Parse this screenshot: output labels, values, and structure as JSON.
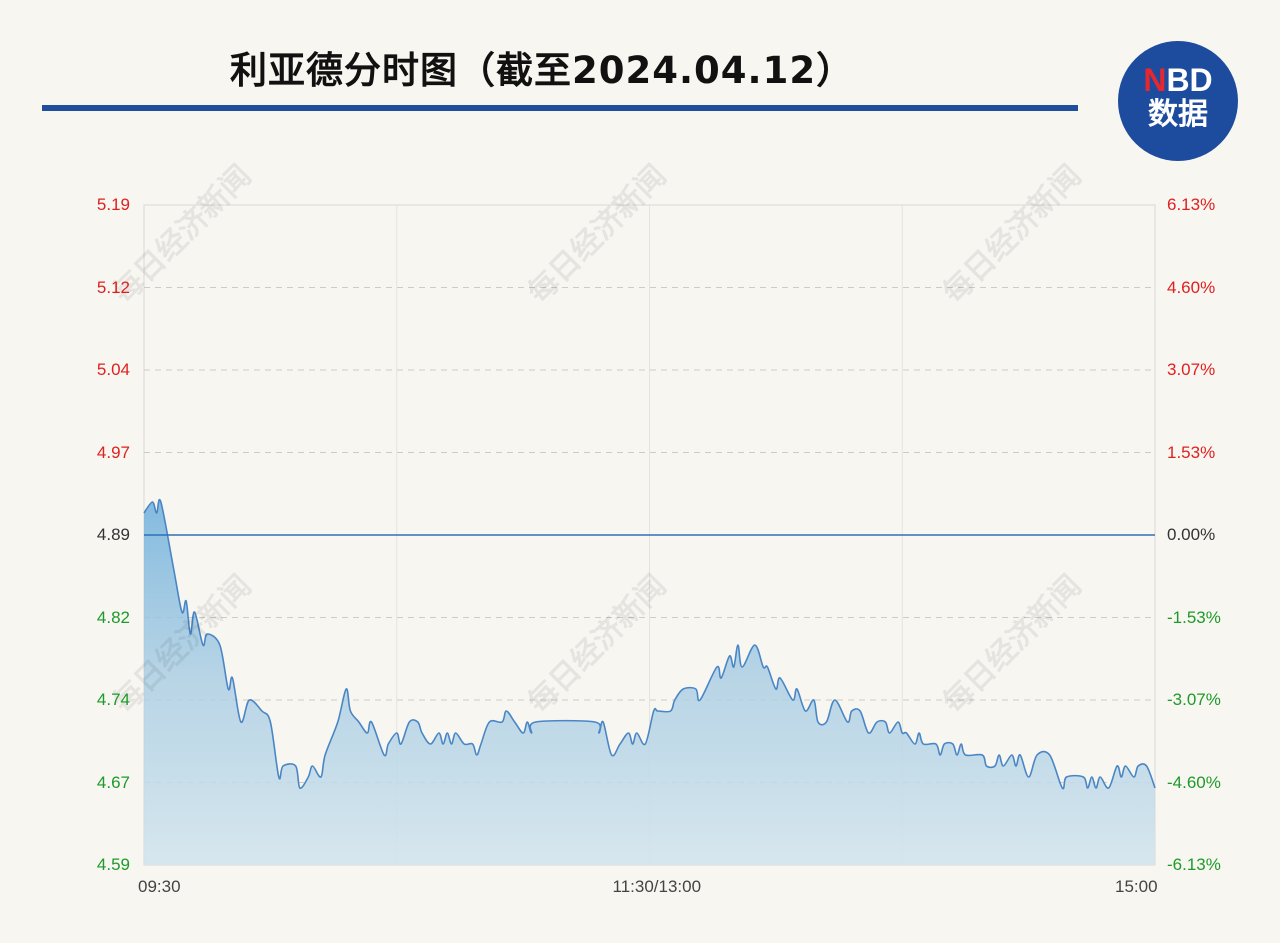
{
  "title": "利亚德分时图（截至2024.04.12）",
  "logo": {
    "brand_n": "N",
    "brand_rest": "BD",
    "subtitle": "数据"
  },
  "watermark": "每日经济新闻",
  "colors": {
    "up": "#e02020",
    "flat": "#333333",
    "down": "#1e9a2a",
    "line": "#4a86c5",
    "baseline": "#2f6fb8",
    "title_rule": "#1f4e9c",
    "logo_bg": "#1d4c9e"
  },
  "chart_data": {
    "type": "area",
    "title": "利亚德分时图（截至2024.04.12）",
    "prev_close": 4.89,
    "ylim": [
      4.59,
      5.19
    ],
    "y_ticks_left": [
      "5.19",
      "5.12",
      "5.04",
      "4.97",
      "4.89",
      "4.82",
      "4.74",
      "4.67",
      "4.59"
    ],
    "y_ticks_right": [
      "6.13%",
      "4.60%",
      "3.07%",
      "1.53%",
      "0.00%",
      "-1.53%",
      "-3.07%",
      "-4.60%",
      "-6.13%"
    ],
    "x_ticks": [
      "09:30",
      "11:30/13:00",
      "15:00"
    ],
    "sessions": [
      [
        "09:30",
        "11:30"
      ],
      [
        "13:00",
        "15:00"
      ]
    ],
    "grid": true,
    "series": [
      {
        "points": [
          [
            "09:30",
            4.91
          ],
          [
            "09:32",
            4.92
          ],
          [
            "09:33",
            4.91
          ],
          [
            "09:34",
            4.92
          ],
          [
            "09:37",
            4.86
          ],
          [
            "09:39",
            4.82
          ],
          [
            "09:40",
            4.83
          ],
          [
            "09:41",
            4.8
          ],
          [
            "09:42",
            4.82
          ],
          [
            "09:44",
            4.79
          ],
          [
            "09:45",
            4.8
          ],
          [
            "09:48",
            4.79
          ],
          [
            "09:50",
            4.75
          ],
          [
            "09:51",
            4.76
          ],
          [
            "09:53",
            4.72
          ],
          [
            "09:55",
            4.74
          ],
          [
            "09:58",
            4.73
          ],
          [
            "10:00",
            4.72
          ],
          [
            "10:02",
            4.67
          ],
          [
            "10:03",
            4.68
          ],
          [
            "10:06",
            4.68
          ],
          [
            "10:07",
            4.66
          ],
          [
            "10:09",
            4.67
          ],
          [
            "10:10",
            4.68
          ],
          [
            "10:12",
            4.67
          ],
          [
            "10:13",
            4.69
          ],
          [
            "10:16",
            4.72
          ],
          [
            "10:18",
            4.75
          ],
          [
            "10:19",
            4.73
          ],
          [
            "10:21",
            4.72
          ],
          [
            "10:23",
            4.71
          ],
          [
            "10:24",
            4.72
          ],
          [
            "10:27",
            4.69
          ],
          [
            "10:28",
            4.7
          ],
          [
            "10:30",
            4.71
          ],
          [
            "10:31",
            4.7
          ],
          [
            "10:33",
            4.72
          ],
          [
            "10:35",
            4.72
          ],
          [
            "10:36",
            4.71
          ],
          [
            "10:38",
            4.7
          ],
          [
            "10:40",
            4.71
          ],
          [
            "10:41",
            4.7
          ],
          [
            "10:42",
            4.71
          ],
          [
            "10:43",
            4.7
          ],
          [
            "10:44",
            4.71
          ],
          [
            "10:46",
            4.7
          ],
          [
            "10:48",
            4.7
          ],
          [
            "10:49",
            4.69
          ],
          [
            "10:50",
            4.7
          ],
          [
            "10:52",
            4.72
          ],
          [
            "10:55",
            4.72
          ],
          [
            "10:56",
            4.73
          ],
          [
            "10:58",
            4.72
          ],
          [
            "11:00",
            4.71
          ],
          [
            "11:01",
            4.72
          ],
          [
            "11:02",
            4.71
          ],
          [
            "11:03",
            4.72
          ],
          [
            "11:17",
            4.72
          ],
          [
            "11:18",
            4.71
          ],
          [
            "11:19",
            4.72
          ],
          [
            "11:21",
            4.69
          ],
          [
            "11:23",
            4.7
          ],
          [
            "11:25",
            4.71
          ],
          [
            "11:26",
            4.7
          ],
          [
            "11:27",
            4.71
          ],
          [
            "11:29",
            4.7
          ],
          [
            "13:01",
            4.73
          ],
          [
            "13:02",
            4.73
          ],
          [
            "13:05",
            4.73
          ],
          [
            "13:06",
            4.74
          ],
          [
            "13:08",
            4.75
          ],
          [
            "13:11",
            4.75
          ],
          [
            "13:12",
            4.74
          ],
          [
            "13:16",
            4.77
          ],
          [
            "13:17",
            4.76
          ],
          [
            "13:19",
            4.78
          ],
          [
            "13:20",
            4.77
          ],
          [
            "13:21",
            4.79
          ],
          [
            "13:22",
            4.77
          ],
          [
            "13:25",
            4.79
          ],
          [
            "13:27",
            4.77
          ],
          [
            "13:28",
            4.77
          ],
          [
            "13:30",
            4.75
          ],
          [
            "13:31",
            4.76
          ],
          [
            "13:34",
            4.74
          ],
          [
            "13:35",
            4.75
          ],
          [
            "13:37",
            4.73
          ],
          [
            "13:39",
            4.74
          ],
          [
            "13:40",
            4.72
          ],
          [
            "13:42",
            4.72
          ],
          [
            "13:44",
            4.74
          ],
          [
            "13:47",
            4.72
          ],
          [
            "13:48",
            4.73
          ],
          [
            "13:50",
            4.73
          ],
          [
            "13:52",
            4.71
          ],
          [
            "13:54",
            4.72
          ],
          [
            "13:56",
            4.72
          ],
          [
            "13:57",
            4.71
          ],
          [
            "13:59",
            4.72
          ],
          [
            "14:00",
            4.71
          ],
          [
            "14:01",
            4.71
          ],
          [
            "14:03",
            4.7
          ],
          [
            "14:04",
            4.71
          ],
          [
            "14:05",
            4.7
          ],
          [
            "14:08",
            4.7
          ],
          [
            "14:09",
            4.69
          ],
          [
            "14:10",
            4.7
          ],
          [
            "14:12",
            4.7
          ],
          [
            "14:13",
            4.69
          ],
          [
            "14:14",
            4.7
          ],
          [
            "14:15",
            4.69
          ],
          [
            "14:19",
            4.69
          ],
          [
            "14:20",
            4.68
          ],
          [
            "14:22",
            4.68
          ],
          [
            "14:23",
            4.69
          ],
          [
            "14:24",
            4.68
          ],
          [
            "14:26",
            4.69
          ],
          [
            "14:27",
            4.68
          ],
          [
            "14:28",
            4.69
          ],
          [
            "14:30",
            4.67
          ],
          [
            "14:32",
            4.69
          ],
          [
            "14:35",
            4.69
          ],
          [
            "14:38",
            4.66
          ],
          [
            "14:39",
            4.67
          ],
          [
            "14:43",
            4.67
          ],
          [
            "14:44",
            4.66
          ],
          [
            "14:45",
            4.67
          ],
          [
            "14:46",
            4.66
          ],
          [
            "14:47",
            4.67
          ],
          [
            "14:49",
            4.66
          ],
          [
            "14:51",
            4.68
          ],
          [
            "14:52",
            4.67
          ],
          [
            "14:53",
            4.68
          ],
          [
            "14:55",
            4.67
          ],
          [
            "14:56",
            4.68
          ],
          [
            "14:58",
            4.68
          ],
          [
            "15:00",
            4.66
          ]
        ]
      }
    ]
  }
}
